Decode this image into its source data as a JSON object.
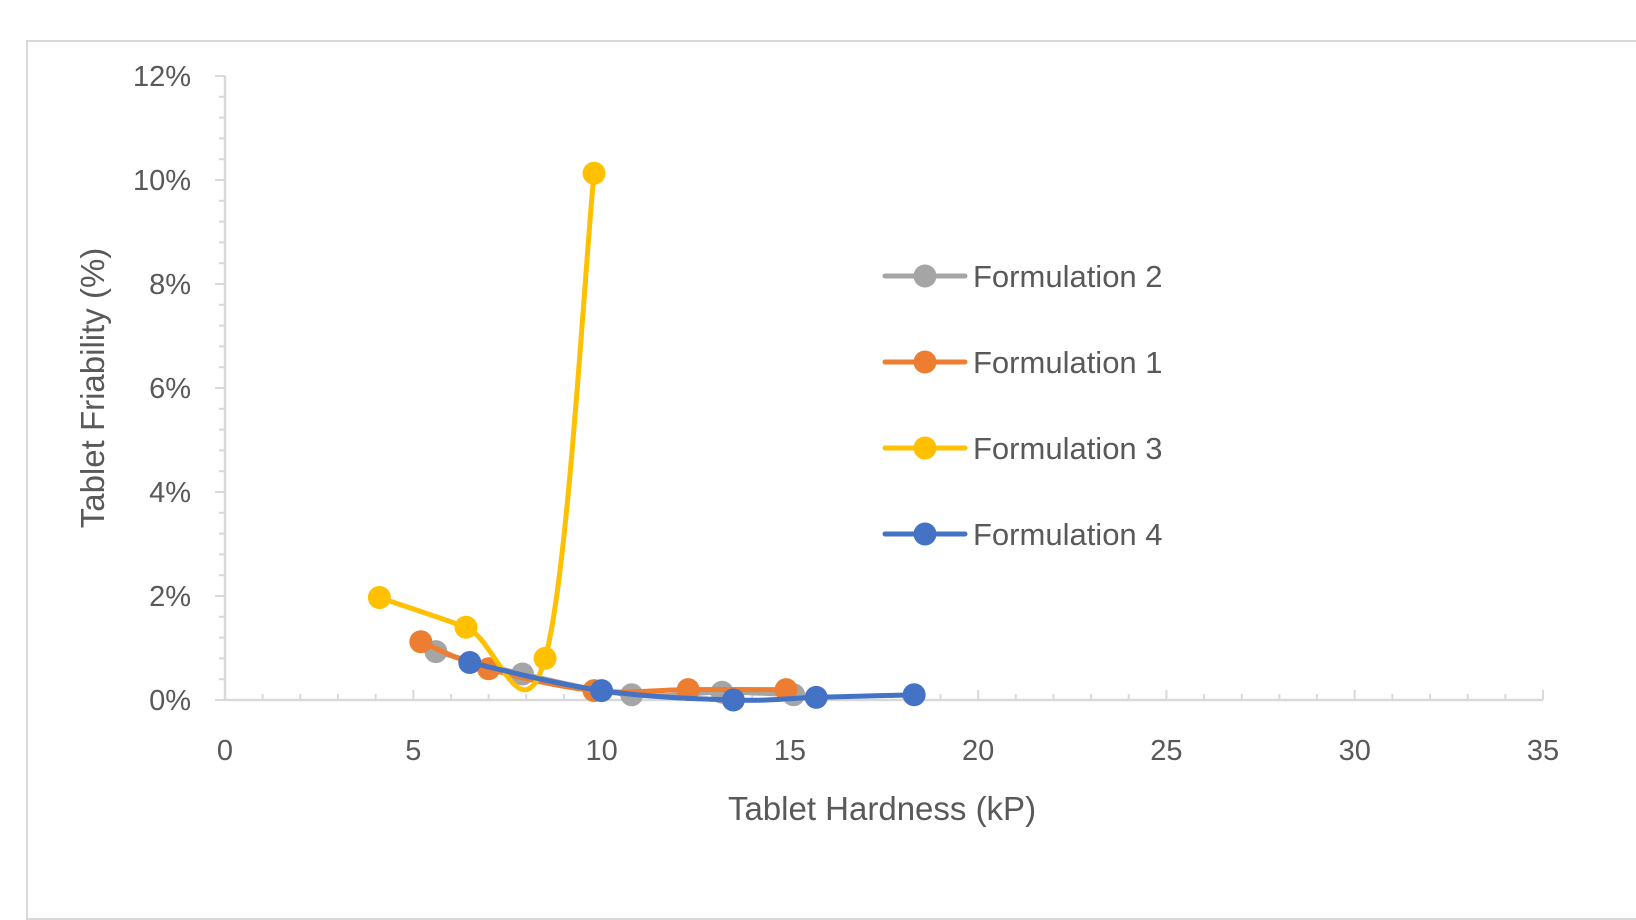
{
  "chart_data": {
    "type": "scatter",
    "mode": "lines+markers",
    "smooth": true,
    "xlabel": "Tablet Hardness (kP)",
    "ylabel": "Tablet Friability (%)",
    "xlim": [
      0,
      35
    ],
    "ylim": [
      0,
      0.12
    ],
    "x_ticks": [
      0,
      5,
      10,
      15,
      20,
      25,
      30,
      35
    ],
    "x_tick_labels": [
      "0",
      "5",
      "10",
      "15",
      "20",
      "25",
      "30",
      "35"
    ],
    "y_ticks": [
      0,
      0.02,
      0.04,
      0.06,
      0.08,
      0.1,
      0.12
    ],
    "y_tick_labels": [
      "0%",
      "2%",
      "4%",
      "6%",
      "8%",
      "10%",
      "12%"
    ],
    "grid": false,
    "legend_position": "right",
    "series": [
      {
        "name": "Formulation 2",
        "color": "#a5a5a5",
        "x": [
          5.6,
          7.9,
          10.8,
          13.2,
          15.1
        ],
        "y": [
          0.0093,
          0.005,
          0.001,
          0.0015,
          0.001
        ]
      },
      {
        "name": "Formulation 1",
        "color": "#ed7d31",
        "x": [
          5.2,
          7.0,
          9.8,
          12.3,
          14.9
        ],
        "y": [
          0.0112,
          0.006,
          0.0018,
          0.002,
          0.002
        ]
      },
      {
        "name": "Formulation 3",
        "color": "#ffc000",
        "x": [
          4.1,
          6.4,
          8.5,
          9.8
        ],
        "y": [
          0.0197,
          0.014,
          0.008,
          0.1013
        ]
      },
      {
        "name": "Formulation 4",
        "color": "#4472c4",
        "x": [
          6.5,
          10.0,
          13.5,
          15.7,
          18.3
        ],
        "y": [
          0.0072,
          0.0018,
          0.0,
          0.0005,
          0.001
        ]
      }
    ]
  }
}
